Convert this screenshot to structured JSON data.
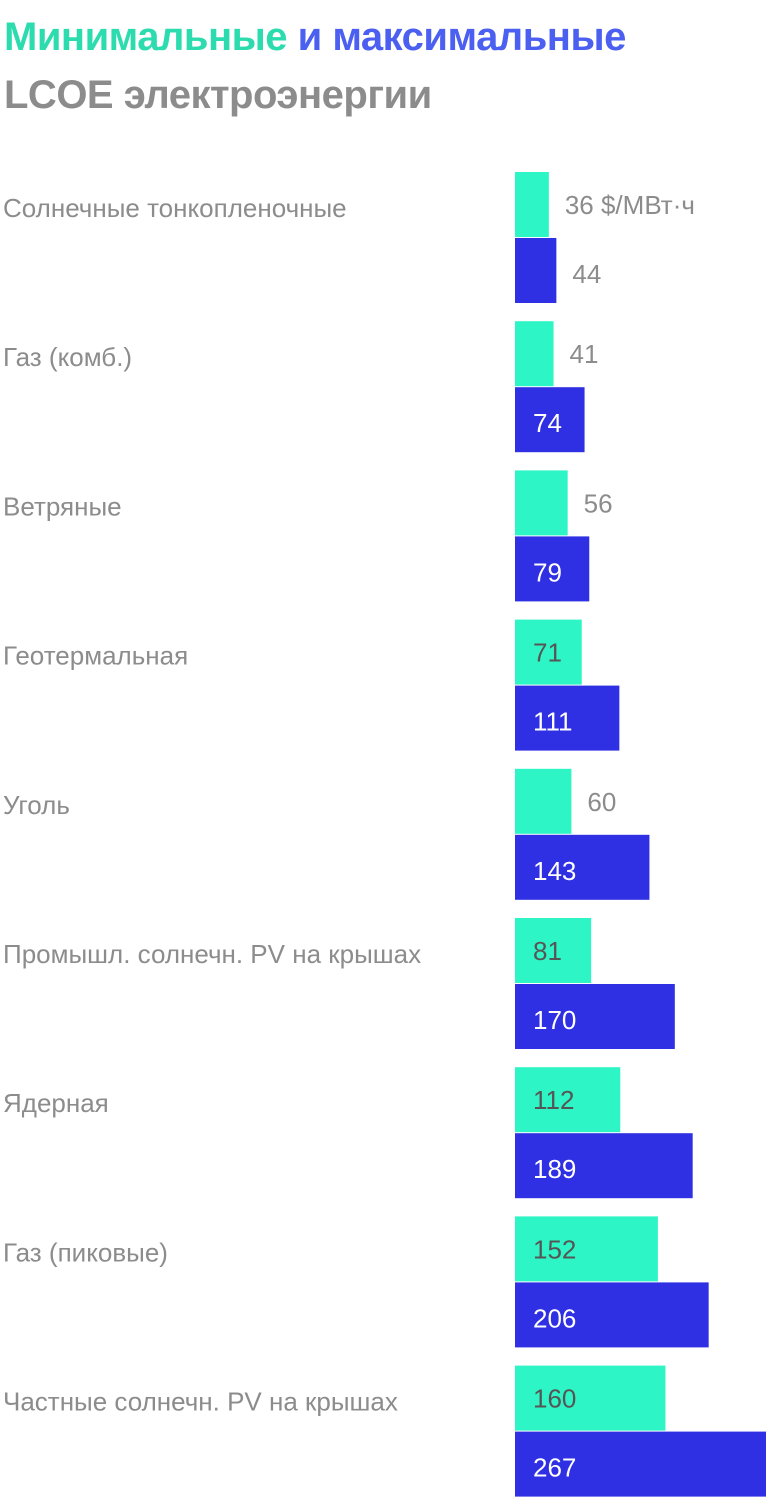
{
  "title": {
    "part_min": "Минимальные",
    "part_and_max": " и максимальные",
    "line2": "LCOE электроэнергии"
  },
  "colors": {
    "min": "#2ef5c5",
    "max": "#2f2fe3",
    "min_title": "#2ddcae",
    "max_title": "#4b5ff0",
    "text": "#8c8c8c"
  },
  "chart_data": {
    "type": "bar",
    "orientation": "horizontal",
    "unit_label": "$/МВт·ч",
    "categories": [
      "Солнечные тонкопленочные",
      "Газ (комб.)",
      "Ветряные",
      "Геотермальная",
      "Уголь",
      "Промышл. солнечн. PV на крышах",
      "Ядерная",
      "Газ (пиковые)",
      "Частные солнечн. PV на крышах"
    ],
    "series": [
      {
        "name": "Минимальные",
        "values": [
          36,
          41,
          56,
          71,
          60,
          81,
          112,
          152,
          160
        ]
      },
      {
        "name": "Максимальные",
        "values": [
          44,
          74,
          79,
          111,
          143,
          170,
          189,
          206,
          267
        ]
      }
    ],
    "value_labels": {
      "min": [
        "36 $/МВт·ч",
        "41",
        "56",
        "71",
        "60",
        "81",
        "112",
        "152",
        "160"
      ],
      "max": [
        "44",
        "74",
        "79",
        "111",
        "143",
        "170",
        "189",
        "206",
        "267"
      ]
    },
    "legend": "title",
    "grid": false
  }
}
